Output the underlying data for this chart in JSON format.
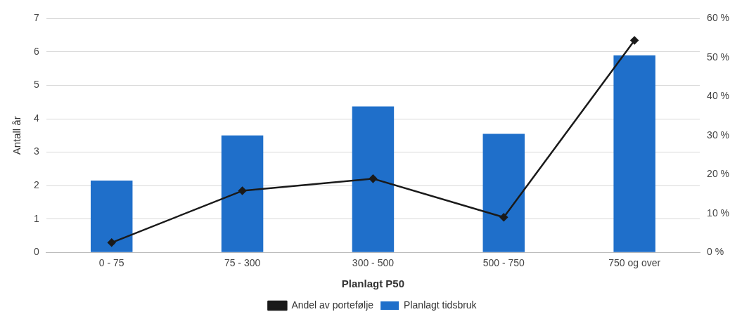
{
  "chart_data": {
    "type": "bar",
    "xlabel": "Planlagt P50",
    "ylabel": "Antall år",
    "categories": [
      "0 - 75",
      "75 - 300",
      "300 - 500",
      "500 - 750",
      "750 og over"
    ],
    "series": [
      {
        "name": "Planlagt tidsbruk",
        "color": "#1f6fca",
        "values": [
          2.15,
          3.5,
          4.37,
          3.55,
          5.9
        ]
      },
      {
        "name": "Andel av portefølje",
        "type": "line",
        "axis": "y2",
        "color": "#1a1a1a",
        "marker": "diamond",
        "values": [
          2.5,
          15.8,
          18.9,
          9.0,
          54.4
        ]
      }
    ],
    "ylim": [
      0,
      7
    ],
    "yticks": [
      0,
      1,
      2,
      3,
      4,
      5,
      6,
      7
    ],
    "y2lim": [
      0,
      60
    ],
    "y2ticks": [
      {
        "value": 0,
        "label": "0 %"
      },
      {
        "value": 10,
        "label": "10 %"
      },
      {
        "value": 20,
        "label": "20 %"
      },
      {
        "value": 30,
        "label": "30 %"
      },
      {
        "value": 40,
        "label": "40 %"
      },
      {
        "value": 50,
        "label": "50 %"
      },
      {
        "value": 60,
        "label": "60 %"
      }
    ],
    "grid": "y",
    "legend": "bottom"
  }
}
